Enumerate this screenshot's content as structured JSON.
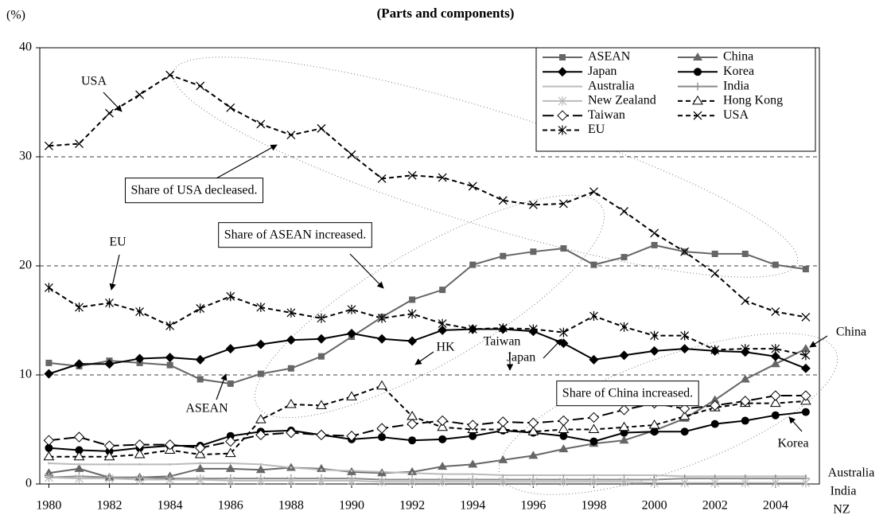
{
  "chart_data": {
    "type": "line",
    "subtitle": "(Parts and components)",
    "ylabel": "(%)",
    "x": [
      1980,
      1981,
      1982,
      1983,
      1984,
      1985,
      1986,
      1987,
      1988,
      1989,
      1990,
      1991,
      1992,
      1993,
      1994,
      1995,
      1996,
      1997,
      1998,
      1999,
      2000,
      2001,
      2002,
      2003,
      2004,
      2005
    ],
    "xlim": [
      1979.7,
      2005.45
    ],
    "xticks": [
      1980,
      1982,
      1984,
      1986,
      1988,
      1990,
      1992,
      1994,
      1996,
      1998,
      2000,
      2002,
      2004
    ],
    "ylim": [
      0,
      40
    ],
    "yticks": [
      0,
      10,
      20,
      30,
      40
    ],
    "grid": true,
    "legend": "upper right",
    "series": [
      {
        "name": "ASEAN",
        "color": "#666666",
        "dash": "solid",
        "marker": "square",
        "values": [
          11.1,
          10.8,
          11.3,
          11.1,
          10.9,
          9.6,
          9.2,
          10.1,
          10.6,
          11.7,
          13.5,
          15.3,
          16.9,
          17.8,
          20.1,
          20.9,
          21.3,
          21.6,
          20.1,
          20.8,
          21.9,
          21.3,
          21.1,
          21.1,
          20.1,
          19.7
        ]
      },
      {
        "name": "China",
        "color": "#666666",
        "dash": "solid",
        "marker": "triangle",
        "values": [
          1.0,
          1.4,
          0.6,
          0.6,
          0.7,
          1.4,
          1.4,
          1.3,
          1.5,
          1.4,
          1.1,
          1.0,
          1.1,
          1.6,
          1.8,
          2.2,
          2.6,
          3.2,
          3.7,
          4.0,
          4.9,
          6.0,
          7.7,
          9.6,
          11.0,
          12.4
        ]
      },
      {
        "name": "Japan",
        "color": "#000000",
        "dash": "solid",
        "marker": "diamond",
        "values": [
          10.1,
          11.0,
          11.0,
          11.5,
          11.6,
          11.4,
          12.4,
          12.8,
          13.2,
          13.3,
          13.8,
          13.3,
          13.1,
          14.1,
          14.2,
          14.2,
          14.0,
          12.9,
          11.4,
          11.8,
          12.2,
          12.4,
          12.2,
          12.1,
          11.7,
          10.6
        ]
      },
      {
        "name": "Korea",
        "color": "#000000",
        "dash": "solid",
        "marker": "circle",
        "values": [
          3.3,
          3.1,
          3.0,
          3.3,
          3.5,
          3.5,
          4.4,
          4.8,
          4.9,
          4.5,
          4.1,
          4.3,
          4.0,
          4.1,
          4.4,
          4.9,
          4.7,
          4.4,
          3.9,
          4.7,
          4.8,
          4.8,
          5.5,
          5.8,
          6.3,
          6.6
        ]
      },
      {
        "name": "Australia",
        "color": "#bbbbbb",
        "dash": "solid",
        "marker": "none",
        "values": [
          1.9,
          1.8,
          1.8,
          1.8,
          1.8,
          1.9,
          1.9,
          1.8,
          1.5,
          1.3,
          1.2,
          1.1,
          1.0,
          0.9,
          0.9,
          0.8,
          0.8,
          0.8,
          0.8,
          0.8,
          0.8,
          0.7,
          0.7,
          0.7,
          0.7,
          0.7
        ]
      },
      {
        "name": "India",
        "color": "#888888",
        "dash": "solid",
        "marker": "plus",
        "values": [
          0.6,
          0.7,
          0.6,
          0.6,
          0.5,
          0.5,
          0.5,
          0.5,
          0.5,
          0.5,
          0.5,
          0.4,
          0.4,
          0.4,
          0.4,
          0.4,
          0.4,
          0.4,
          0.4,
          0.4,
          0.4,
          0.5,
          0.5,
          0.5,
          0.5,
          0.5
        ]
      },
      {
        "name": "New Zealand",
        "color": "#bbbbbb",
        "dash": "solid",
        "marker": "asterisk",
        "values": [
          0.6,
          0.5,
          0.5,
          0.4,
          0.4,
          0.4,
          0.3,
          0.3,
          0.3,
          0.3,
          0.3,
          0.2,
          0.2,
          0.2,
          0.2,
          0.2,
          0.2,
          0.2,
          0.2,
          0.2,
          0.1,
          0.1,
          0.1,
          0.1,
          0.1,
          0.1
        ]
      },
      {
        "name": "Hong Kong",
        "color": "#000000",
        "dash": "dashed",
        "marker": "triangle-open",
        "values": [
          2.5,
          2.5,
          2.5,
          2.7,
          3.1,
          2.7,
          2.8,
          5.9,
          7.3,
          7.2,
          8.0,
          9.0,
          6.2,
          5.2,
          5.0,
          5.0,
          4.8,
          5.0,
          5.0,
          5.2,
          5.4,
          6.2,
          7.0,
          7.4,
          7.4,
          7.6
        ]
      },
      {
        "name": "Taiwan",
        "color": "#000000",
        "dash": "long-dash",
        "marker": "diamond-open",
        "values": [
          4.0,
          4.3,
          3.5,
          3.6,
          3.6,
          3.3,
          3.9,
          4.5,
          4.7,
          4.5,
          4.4,
          5.1,
          5.5,
          5.8,
          5.4,
          5.7,
          5.6,
          5.8,
          6.1,
          6.8,
          7.4,
          6.9,
          7.2,
          7.6,
          8.1,
          8.1
        ]
      },
      {
        "name": "USA",
        "color": "#000000",
        "dash": "dashed",
        "marker": "x",
        "values": [
          31.0,
          31.2,
          34.0,
          35.7,
          37.5,
          36.5,
          34.5,
          33.0,
          32.0,
          32.6,
          30.2,
          28.0,
          28.3,
          28.1,
          27.3,
          26.0,
          25.6,
          25.7,
          26.8,
          25.0,
          23.0,
          21.3,
          19.3,
          16.8,
          15.8,
          15.3
        ]
      },
      {
        "name": "EU",
        "color": "#000000",
        "dash": "dashed",
        "marker": "asterisk",
        "values": [
          18.0,
          16.2,
          16.6,
          15.8,
          14.5,
          16.1,
          17.2,
          16.2,
          15.7,
          15.2,
          16.0,
          15.2,
          15.6,
          14.7,
          14.2,
          14.3,
          14.2,
          13.9,
          15.4,
          14.4,
          13.6,
          13.6,
          12.3,
          12.4,
          12.4,
          11.8
        ]
      }
    ],
    "annotations": [
      "USA",
      "Share of USA decleased.",
      "EU",
      "Share of ASEAN increased.",
      "ASEAN",
      "Japan",
      "HK",
      "Taiwan",
      "Share of China increased.",
      "China",
      "Korea",
      "Australia",
      "India",
      "NZ"
    ]
  }
}
